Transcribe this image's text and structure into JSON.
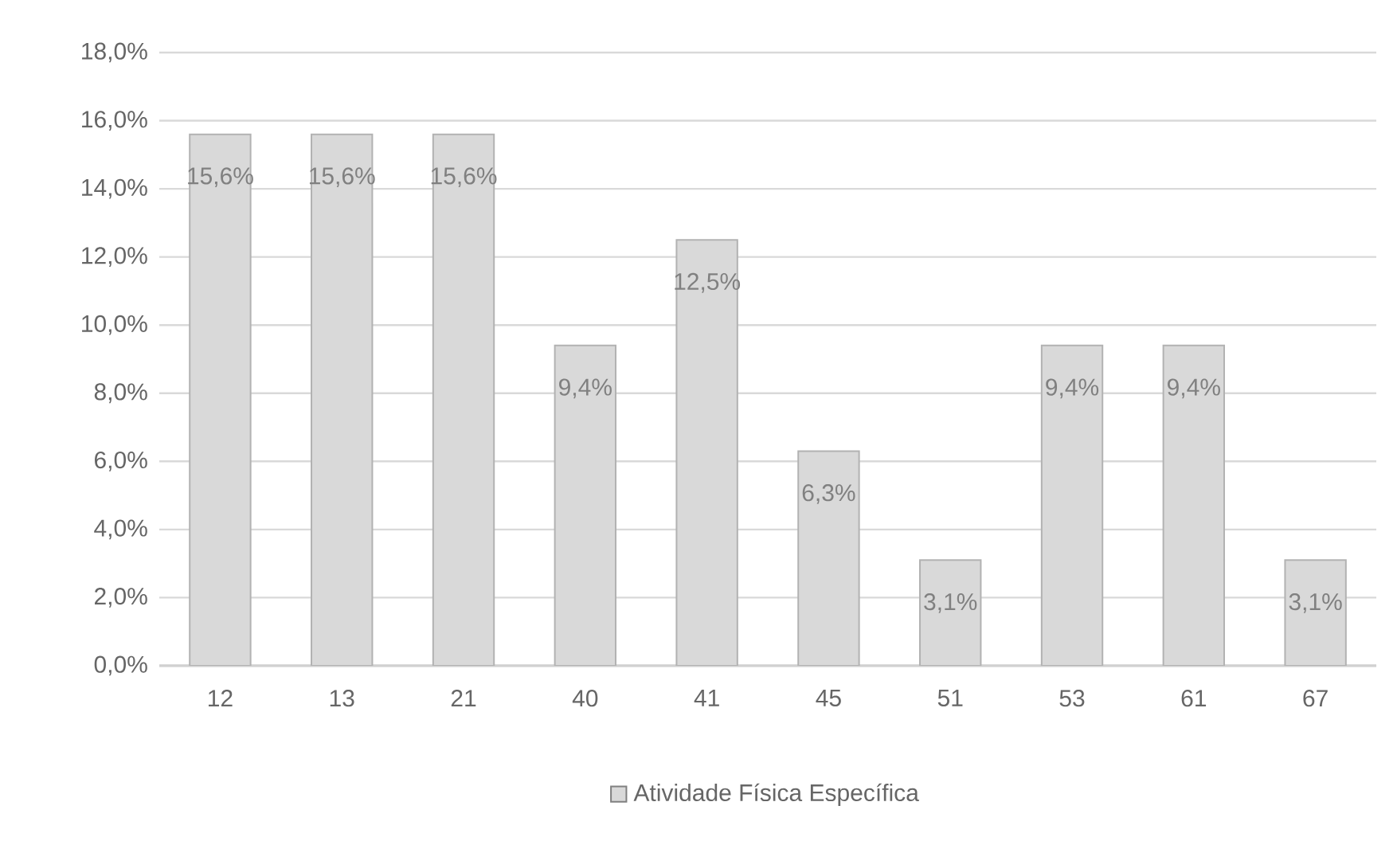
{
  "chart_data": {
    "type": "bar",
    "categories": [
      "12",
      "13",
      "21",
      "40",
      "41",
      "45",
      "51",
      "53",
      "61",
      "67"
    ],
    "series": [
      {
        "name": "Atividade Física Específica",
        "color": "#d9d9d9",
        "values": [
          15.6,
          15.6,
          15.6,
          9.4,
          12.5,
          6.3,
          3.1,
          9.4,
          9.4,
          3.1
        ],
        "value_labels": [
          "15,6%",
          "15,6%",
          "15,6%",
          "9,4%",
          "12,5%",
          "6,3%",
          "3,1%",
          "9,4%",
          "9,4%",
          "3,1%"
        ]
      }
    ],
    "ylim": [
      0,
      18
    ],
    "yticks": [
      {
        "value": 0,
        "label": "0,0%"
      },
      {
        "value": 2,
        "label": "2,0%"
      },
      {
        "value": 4,
        "label": "4,0%"
      },
      {
        "value": 6,
        "label": "6,0%"
      },
      {
        "value": 8,
        "label": "8,0%"
      },
      {
        "value": 10,
        "label": "10,0%"
      },
      {
        "value": 12,
        "label": "12,0%"
      },
      {
        "value": 14,
        "label": "14,0%"
      },
      {
        "value": 16,
        "label": "16,0%"
      },
      {
        "value": 18,
        "label": "18,0%"
      }
    ],
    "grid": "y",
    "legend": "bottom"
  }
}
